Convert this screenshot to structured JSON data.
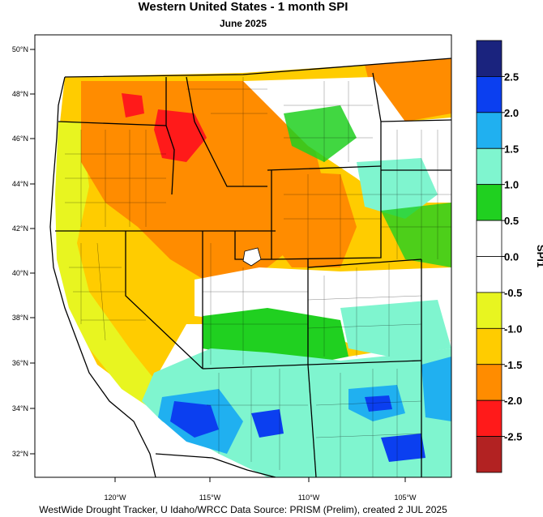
{
  "title": "Western United States - 1 month SPI",
  "subtitle": "June 2025",
  "footer": "WestWide Drought Tracker, U Idaho/WRCC Data Source: PRISM (Prelim), created  2 JUL 2025",
  "colorbar_title": "SPI1",
  "lat_labels": [
    "50°N",
    "48°N",
    "46°N",
    "44°N",
    "42°N",
    "40°N",
    "38°N",
    "36°N",
    "34°N",
    "32°N"
  ],
  "lon_labels": [
    "120°W",
    "115°W",
    "110°W",
    "105°W"
  ],
  "colorbar": {
    "bins": [
      {
        "color": "#1a237e"
      },
      {
        "color": "#0b3ff0"
      },
      {
        "color": "#20b0f0"
      },
      {
        "color": "#7ff5cf"
      },
      {
        "color": "#20d020"
      },
      {
        "color": "#ffffff"
      },
      {
        "color": "#ffffff"
      },
      {
        "color": "#e8f520"
      },
      {
        "color": "#ffcc00"
      },
      {
        "color": "#ff8c00"
      },
      {
        "color": "#ff1a1a"
      },
      {
        "color": "#b22222"
      }
    ],
    "labels": [
      "2.5",
      "2.0",
      "1.5",
      "1.0",
      "0.5",
      "0.0",
      "-0.5",
      "-1.0",
      "-1.5",
      "-2.0",
      "-2.5"
    ]
  }
}
